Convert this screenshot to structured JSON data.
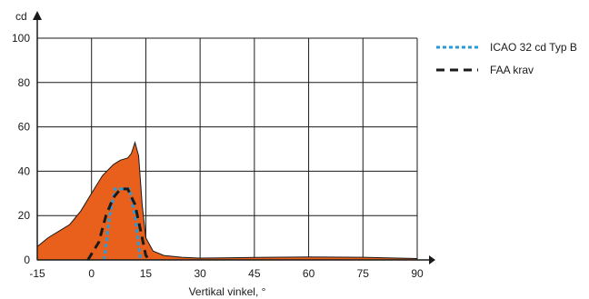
{
  "chart_data": {
    "type": "area",
    "xlabel": "Vertikal vinkel, °",
    "ylabel": "cd",
    "xlim": [
      -15,
      90
    ],
    "ylim": [
      0,
      100
    ],
    "x_ticks": [
      -15,
      0,
      15,
      30,
      45,
      60,
      75,
      90
    ],
    "y_ticks": [
      0,
      20,
      40,
      60,
      80,
      100
    ],
    "grid": true,
    "legend_position": "top-right",
    "colors": {
      "area": "#e8601c",
      "icao": "#2a9bd8",
      "faa": "#1a1a1a",
      "grid": "#1a1a1a"
    },
    "series": [
      {
        "style": "filled-area",
        "x": [
          -15,
          -12,
          -9,
          -6,
          -3,
          0,
          3,
          6,
          8,
          10,
          11,
          12,
          13,
          14,
          15,
          17,
          20,
          25,
          30,
          45,
          60,
          75,
          90
        ],
        "values": [
          6,
          10,
          13,
          16,
          22,
          30,
          38,
          43,
          45,
          46,
          48,
          53,
          47,
          25,
          10,
          4,
          2,
          1.2,
          0.8,
          1.1,
          1.3,
          1.2,
          0.6
        ]
      },
      {
        "name": "ICAO 32 cd Typ B",
        "style": "dotted",
        "x": [
          3.5,
          5,
          6.5,
          10.5,
          12,
          13.5
        ],
        "values": [
          0,
          20,
          32,
          32,
          20,
          0
        ]
      },
      {
        "name": "FAA krav",
        "style": "dashed",
        "x": [
          -1,
          2,
          4,
          6,
          8,
          10,
          12,
          14,
          15,
          16
        ],
        "values": [
          0,
          8,
          20,
          28,
          32,
          32,
          25,
          10,
          2,
          0
        ]
      }
    ]
  }
}
